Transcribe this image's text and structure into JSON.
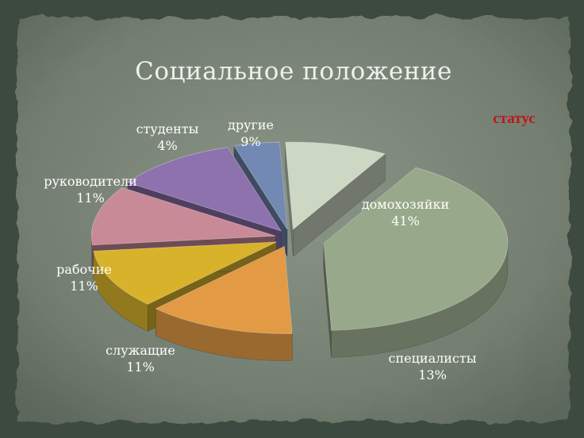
{
  "slide": {
    "title": "Социальное  положение",
    "status_label": "статус"
  },
  "colors": {
    "board": "#7a8478",
    "board_edge": "#4a554b",
    "title": "#eef0ec",
    "status": "#c0151b",
    "label": "#ffffff"
  },
  "chart_data": {
    "type": "pie",
    "title": "",
    "three_d": true,
    "exploded": true,
    "legend": "none",
    "slices": [
      {
        "name": "домохозяйки",
        "value": 41,
        "label": "41%",
        "color": "#97a98a"
      },
      {
        "name": "специалисты",
        "value": 13,
        "label": "13%",
        "color": "#e29a45"
      },
      {
        "name": "служащие",
        "value": 11,
        "label": "11%",
        "color": "#d8b22a"
      },
      {
        "name": "рабочие",
        "value": 11,
        "label": "11%",
        "color": "#c98a98"
      },
      {
        "name": "руководители",
        "value": 11,
        "label": "11%",
        "color": "#8e72ae"
      },
      {
        "name": "студенты",
        "value": 4,
        "label": "4%",
        "color": "#7189b3"
      },
      {
        "name": "другие",
        "value": 9,
        "label": "9%",
        "color": "#cdd8c4"
      }
    ]
  }
}
